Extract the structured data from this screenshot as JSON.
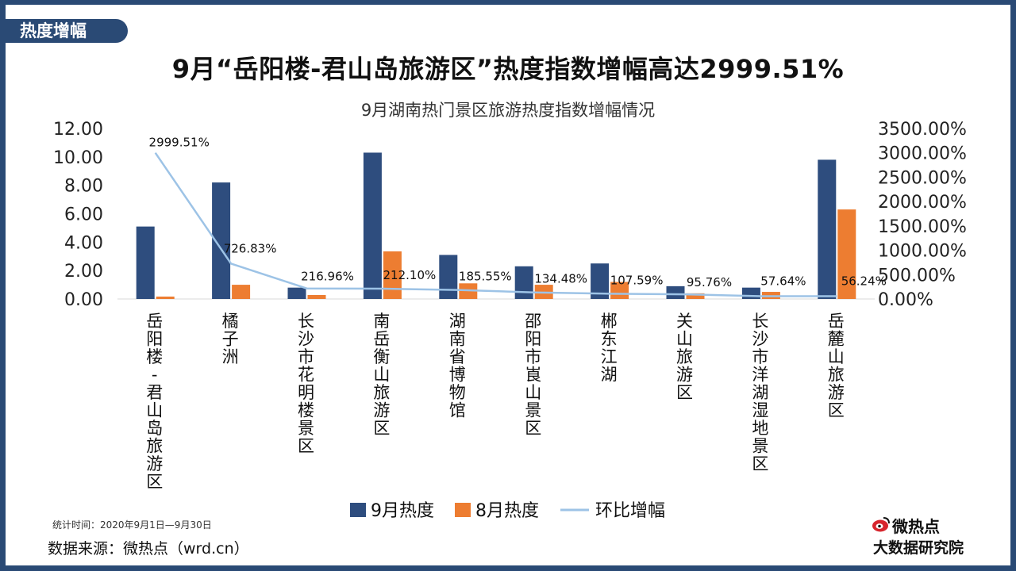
{
  "tag_label": "热度增幅",
  "main_title": "9月“岳阳楼-君山岛旅游区”热度指数增幅高达2999.51%",
  "footnote": "统计时间：2020年9月1日—9月30日",
  "source": "数据来源：微热点（wrd.cn）",
  "logo": {
    "brand": "微热点",
    "sub": "大数据研究院"
  },
  "colors": {
    "frame": "#2a4a75",
    "sep": "#2e4d7e",
    "aug": "#ed7d31",
    "ratio": "#9dc3e6"
  },
  "chart_data": {
    "type": "bar",
    "title": "9月湖南热门景区旅游热度指数增幅情况",
    "categories": [
      "岳阳楼-君山岛旅游区",
      "橘子洲",
      "长沙市花明楼景区",
      "南岳衡山旅游区",
      "湖南省博物馆",
      "邵阳市崀山景区",
      "郴东江湖",
      "关山旅游区",
      "长沙市洋湖湿地景区",
      "岳麓山旅游区"
    ],
    "series": [
      {
        "name": "9月热度",
        "type": "bar",
        "axis": "left",
        "values": [
          5.1,
          8.2,
          0.8,
          10.3,
          3.1,
          2.3,
          2.5,
          0.9,
          0.8,
          9.8
        ]
      },
      {
        "name": "8月热度",
        "type": "bar",
        "axis": "left",
        "values": [
          0.17,
          1.0,
          0.28,
          3.35,
          1.1,
          1.0,
          1.2,
          0.4,
          0.5,
          6.3
        ]
      },
      {
        "name": "环比增幅",
        "type": "line",
        "axis": "right",
        "values": [
          2999.51,
          726.83,
          216.96,
          212.1,
          185.55,
          134.48,
          107.59,
          95.76,
          57.64,
          56.24
        ],
        "labels": [
          "2999.51%",
          "726.83%",
          "216.96%",
          "212.10%",
          "185.55%",
          "134.48%",
          "107.59%",
          "95.76%",
          "57.64%",
          "56.24%"
        ]
      }
    ],
    "y_left": {
      "range": [
        0,
        12
      ],
      "ticks": [
        "0.00",
        "2.00",
        "4.00",
        "6.00",
        "8.00",
        "10.00",
        "12.00"
      ]
    },
    "y_right": {
      "range": [
        0,
        3500
      ],
      "ticks": [
        "0.00%",
        "500.00%",
        "1000.00%",
        "1500.00%",
        "2000.00%",
        "2500.00%",
        "3000.00%",
        "3500.00%"
      ]
    },
    "legend_position": "bottom",
    "grid": false
  }
}
